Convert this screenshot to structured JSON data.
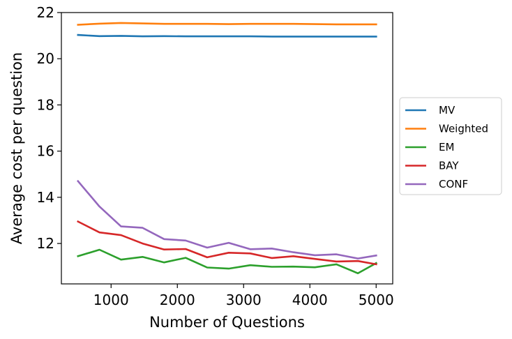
{
  "chart_data": {
    "type": "line",
    "title": "",
    "xlabel": "Number of Questions",
    "ylabel": "Average cost per question",
    "xlim": [
      250,
      5250
    ],
    "ylim": [
      10.25,
      22.0
    ],
    "xticks": [
      1000,
      2000,
      3000,
      4000,
      5000
    ],
    "yticks": [
      12,
      14,
      16,
      18,
      20,
      22
    ],
    "grid": false,
    "legend_position": "center-right outside",
    "x": [
      500,
      825,
      1150,
      1475,
      1800,
      2125,
      2450,
      2775,
      3100,
      3425,
      3750,
      4075,
      4400,
      4725,
      5000
    ],
    "series": [
      {
        "name": "MV",
        "color": "#1f77b4",
        "values": [
          21.03,
          20.98,
          20.99,
          20.97,
          20.98,
          20.97,
          20.97,
          20.97,
          20.97,
          20.96,
          20.96,
          20.96,
          20.96,
          20.96,
          20.96
        ]
      },
      {
        "name": "Weighted",
        "color": "#ff7f0e",
        "values": [
          21.47,
          21.52,
          21.55,
          21.53,
          21.51,
          21.51,
          21.51,
          21.5,
          21.51,
          21.51,
          21.51,
          21.5,
          21.49,
          21.49,
          21.49
        ]
      },
      {
        "name": "EM",
        "color": "#2ca02c",
        "values": [
          11.45,
          11.73,
          11.3,
          11.42,
          11.18,
          11.38,
          10.96,
          10.91,
          11.06,
          10.99,
          11.0,
          10.97,
          11.1,
          10.71,
          11.15
        ]
      },
      {
        "name": "BAY",
        "color": "#d62728",
        "values": [
          12.95,
          12.48,
          12.36,
          12.0,
          11.74,
          11.76,
          11.4,
          11.6,
          11.57,
          11.37,
          11.45,
          11.33,
          11.22,
          11.24,
          11.1
        ]
      },
      {
        "name": "CONF",
        "color": "#9467bd",
        "values": [
          14.7,
          13.6,
          12.74,
          12.68,
          12.19,
          12.13,
          11.82,
          12.03,
          11.75,
          11.78,
          11.62,
          11.49,
          11.53,
          11.35,
          11.48
        ]
      }
    ]
  }
}
